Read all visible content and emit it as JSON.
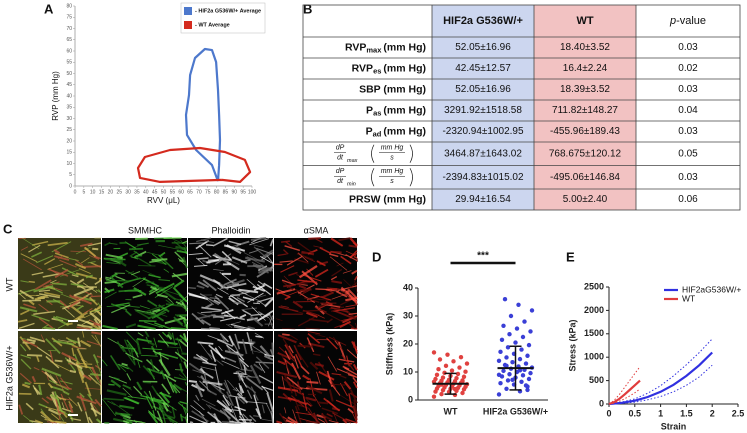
{
  "panel_labels": [
    "A",
    "B",
    "C",
    "D",
    "E"
  ],
  "chart_data": [
    {
      "type": "loop",
      "xlabel": "RVV (μL)",
      "ylabel": "RVP (mm Hg)",
      "xlim": [
        0,
        100
      ],
      "xticks": [
        0,
        5,
        10,
        15,
        20,
        25,
        30,
        35,
        40,
        45,
        50,
        55,
        60,
        65,
        70,
        75,
        80,
        85,
        90,
        95,
        100
      ],
      "ylim": [
        0,
        80
      ],
      "yticks": [
        0,
        5,
        10,
        15,
        20,
        25,
        30,
        35,
        40,
        45,
        50,
        55,
        60,
        65,
        70,
        75,
        80
      ],
      "series": [
        {
          "name": "- HIF2a G536W/+ Average",
          "color": "#4d78cc",
          "x": [
            80.8,
            77.4,
            68.4,
            63.3,
            62.7,
            64.4,
            65,
            67.8,
            73.4,
            77.4,
            79.7,
            80.8,
            81.4,
            81.9,
            81.4,
            80.8
          ],
          "values": [
            2.2,
            9.3,
            16,
            22.7,
            31.6,
            40.4,
            49.3,
            56.9,
            60.9,
            60.4,
            55.1,
            42.7,
            31.6,
            20.4,
            9.3,
            2.2
          ]
        },
        {
          "name": "- WT Average",
          "color": "#d42a1e",
          "x": [
            83,
            48,
            36.7,
            35.6,
            39.5,
            53.7,
            70.6,
            84.7,
            96,
            98.9,
            93.2,
            83
          ],
          "values": [
            2.7,
            1.8,
            3.6,
            8,
            12.9,
            16,
            16.9,
            15.1,
            11.6,
            6.2,
            1.8,
            2.7
          ]
        }
      ]
    },
    {
      "type": "dot",
      "ylabel": "Stiffness (kPa)",
      "categories": [
        "WT",
        "HIF2a G536W/+"
      ],
      "annotation": "***",
      "ylim": [
        0,
        40
      ],
      "yticks": [
        0,
        10,
        20,
        30,
        40
      ],
      "groups": [
        {
          "color": "#e0413f",
          "mean": 5.8,
          "sd": 3.7,
          "values": [
            1.2,
            1.8,
            2.1,
            2.5,
            2.9,
            3.0,
            3.3,
            3.5,
            3.8,
            4.0,
            4.1,
            4.3,
            4.5,
            4.7,
            4.9,
            5.0,
            5.2,
            5.4,
            5.6,
            5.8,
            6.0,
            6.1,
            6.3,
            6.5,
            6.7,
            6.9,
            7.0,
            7.2,
            7.5,
            7.8,
            8.0,
            8.3,
            8.6,
            9.0,
            9.3,
            9.7,
            10.1,
            10.5,
            11.0,
            11.6,
            12.2,
            13.0,
            13.8,
            14.5,
            15.3,
            16.2,
            17.0,
            3.9,
            5.5,
            6.6
          ]
        },
        {
          "color": "#3a3fd6",
          "mean": 11.4,
          "sd": 7.8,
          "values": [
            2.0,
            3.1,
            4.0,
            4.8,
            5.5,
            6.0,
            6.5,
            7.0,
            7.5,
            8.0,
            8.4,
            8.8,
            9.2,
            9.6,
            10.0,
            10.4,
            10.8,
            11.2,
            11.6,
            12.0,
            12.5,
            13.0,
            13.5,
            14.0,
            14.6,
            15.2,
            15.8,
            16.5,
            17.2,
            18.0,
            18.8,
            19.6,
            20.5,
            21.5,
            22.5,
            23.5,
            24.5,
            25.5,
            26.5,
            28.0,
            30.0,
            32.0,
            34.0,
            36.0,
            5.2,
            7.2,
            9.0,
            10.6,
            12.2,
            3.6
          ]
        }
      ]
    },
    {
      "type": "line",
      "xlabel": "Strain",
      "ylabel": "Stress (kPa)",
      "legend": "top-center",
      "xlim": [
        0,
        2.5
      ],
      "xticks": [
        0,
        0.5,
        1,
        1.5,
        2,
        2.5
      ],
      "ylim": [
        0,
        2500
      ],
      "yticks": [
        0,
        500,
        1000,
        1500,
        2000,
        2500
      ],
      "series": [
        {
          "name": "HIF2aG536W/+",
          "color": "#3030e0",
          "x": [
            0,
            0.25,
            0.5,
            0.75,
            1,
            1.25,
            1.5,
            1.75,
            2
          ],
          "values": [
            0,
            25,
            70,
            150,
            260,
            410,
            600,
            830,
            1100
          ],
          "upper": [
            0,
            40,
            110,
            230,
            390,
            600,
            840,
            1100,
            1390
          ],
          "lower": [
            0,
            15,
            40,
            90,
            160,
            260,
            400,
            580,
            830
          ]
        },
        {
          "name": "WT",
          "color": "#e03c3c",
          "x": [
            0,
            0.1,
            0.2,
            0.3,
            0.4,
            0.5,
            0.6
          ],
          "values": [
            0,
            40,
            110,
            200,
            300,
            400,
            500
          ],
          "upper": [
            0,
            80,
            200,
            350,
            500,
            650,
            800
          ],
          "lower": [
            0,
            20,
            60,
            110,
            170,
            240,
            320
          ]
        }
      ]
    }
  ],
  "table": {
    "header": [
      "HIF2a G536W/+",
      "WT",
      {
        "italic": "p",
        "text": "-value"
      }
    ],
    "rows": [
      {
        "label": {
          "base": "RVP",
          "sub": "max",
          "rest": "(mm Hg)"
        },
        "cells": [
          "52.05±16.96",
          "18.40±3.52",
          "0.03"
        ]
      },
      {
        "label": {
          "base": "RVP",
          "sub": "es",
          "rest": "(mm Hg)"
        },
        "cells": [
          "42.45±12.57",
          "16.4±2.24",
          "0.02"
        ]
      },
      {
        "label": {
          "base": "SBP (mm Hg)"
        },
        "cells": [
          "52.05±16.96",
          "18.39±3.52",
          "0.03"
        ]
      },
      {
        "label": {
          "base": "P",
          "sub": "as",
          "rest": "(mm Hg)"
        },
        "cells": [
          "3291.92±1518.58",
          "711.82±148.27",
          "0.04"
        ]
      },
      {
        "label": {
          "base": "P",
          "sub": "ad",
          "rest": "(mm Hg)"
        },
        "cells": [
          "-2320.94±1002.95",
          "-455.96±189.43",
          "0.03"
        ]
      },
      {
        "label": {
          "num": "dP",
          "den": "dt",
          "sub": "max",
          "unit_num": "mm Hg",
          "unit_den": "s"
        },
        "cells": [
          "3464.87±1643.02",
          "768.675±120.12",
          "0.05"
        ]
      },
      {
        "label": {
          "num": "dP",
          "den": "dt",
          "sub": "min",
          "unit_num": "mm Hg",
          "unit_den": "s"
        },
        "cells": [
          "-2394.83±1015.02",
          "-495.06±146.84",
          "0.03"
        ]
      },
      {
        "label": {
          "base": "PRSW (mm Hg)"
        },
        "cells": [
          "29.94±16.54",
          "5.00±2.40",
          "0.06"
        ]
      }
    ]
  },
  "images": {
    "columns": [
      "SMMHC",
      "Phalloidin",
      "αSMA"
    ],
    "rows": [
      "WT",
      "HIF2a G536W/+"
    ]
  }
}
